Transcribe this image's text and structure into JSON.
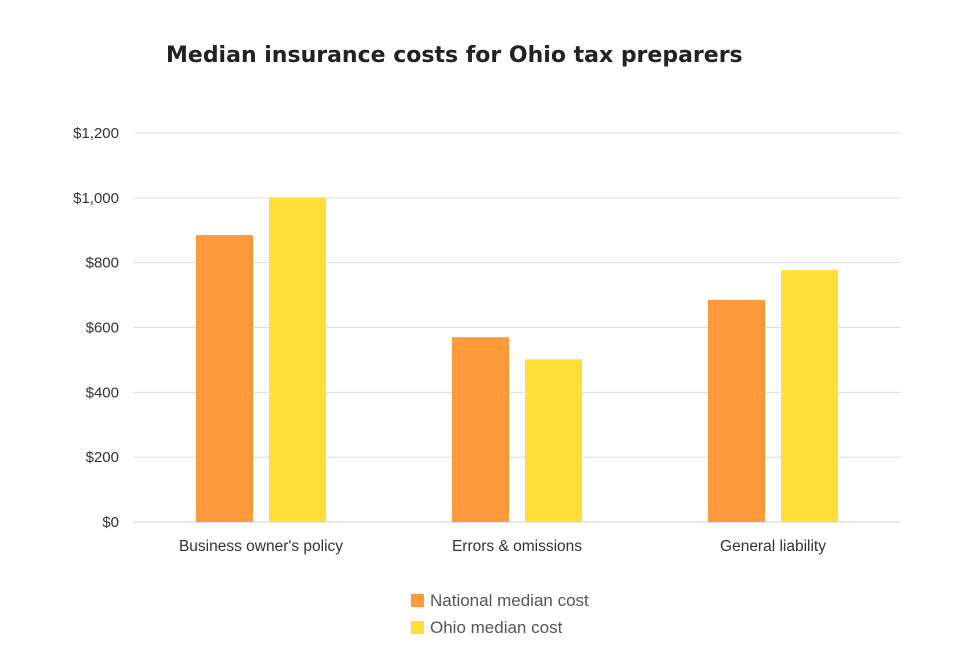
{
  "chart_data": {
    "type": "bar",
    "title": "Median insurance costs for Ohio tax preparers",
    "categories": [
      "Business owner's policy",
      "Errors & omissions",
      "General liability"
    ],
    "series": [
      {
        "name": "National median cost",
        "color": "#FF9A3C",
        "values": [
          885,
          570,
          685
        ]
      },
      {
        "name": "Ohio median cost",
        "color": "#FFDE38",
        "values": [
          1000,
          502,
          777
        ]
      }
    ],
    "y_ticks": [
      {
        "value": 0,
        "label": "$0"
      },
      {
        "value": 200,
        "label": "$200"
      },
      {
        "value": 400,
        "label": "$400"
      },
      {
        "value": 600,
        "label": "$600"
      },
      {
        "value": 800,
        "label": "$800"
      },
      {
        "value": 1000,
        "label": "$1,000"
      },
      {
        "value": 1200,
        "label": "$1,200"
      }
    ],
    "ylim": [
      0,
      1200
    ],
    "grid": true,
    "legend_position": "bottom-center",
    "xlabel": "",
    "ylabel": ""
  }
}
